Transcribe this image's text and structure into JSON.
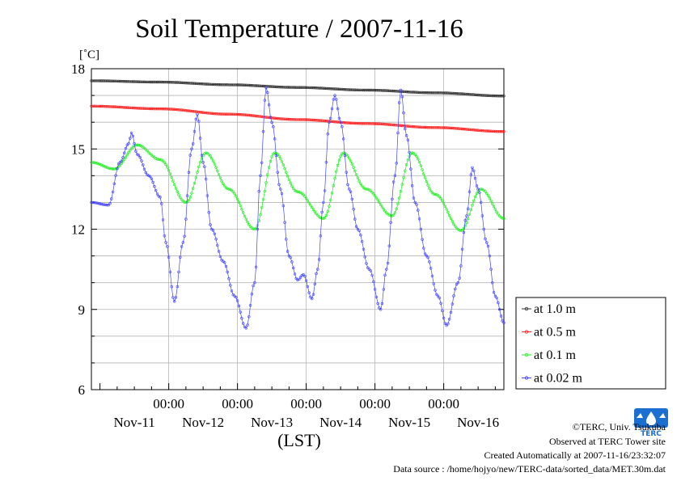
{
  "chart_data": {
    "type": "line",
    "title": "Soil Temperature / 2007-11-16",
    "ylabel": "[˚C]",
    "xlabel": "(LST)",
    "ylim": [
      6,
      18
    ],
    "yticks": [
      6,
      9,
      12,
      15,
      18
    ],
    "xlim_hours": [
      0,
      144
    ],
    "time_start": "2007-11-10 21:00",
    "xticks": [
      {
        "hour": 27,
        "time": "00:00",
        "date": "Nov-12"
      },
      {
        "hour": 51,
        "time": "00:00",
        "date": "Nov-13"
      },
      {
        "hour": 75,
        "time": "00:00",
        "date": "Nov-14"
      },
      {
        "hour": 99,
        "time": "00:00",
        "date": "Nov-15"
      },
      {
        "hour": 123,
        "time": "00:00",
        "date": "Nov-16"
      }
    ],
    "date_labels": [
      "Nov-11",
      "Nov-12",
      "Nov-13",
      "Nov-14",
      "Nov-15",
      "Nov-16"
    ],
    "grid": true,
    "legend_position": "right",
    "series": [
      {
        "name": "at 1.0 m",
        "color": "#333333",
        "points": [
          [
            0,
            17.55
          ],
          [
            24,
            17.5
          ],
          [
            48,
            17.4
          ],
          [
            72,
            17.3
          ],
          [
            96,
            17.2
          ],
          [
            120,
            17.1
          ],
          [
            144,
            16.98
          ]
        ]
      },
      {
        "name": "at 0.5 m",
        "color": "#ff2222",
        "points": [
          [
            0,
            16.6
          ],
          [
            24,
            16.5
          ],
          [
            48,
            16.3
          ],
          [
            72,
            16.1
          ],
          [
            96,
            15.95
          ],
          [
            120,
            15.8
          ],
          [
            144,
            15.65
          ]
        ]
      },
      {
        "name": "at 0.1 m",
        "color": "#22ee22",
        "points": [
          [
            0,
            14.5
          ],
          [
            8,
            14.25
          ],
          [
            16,
            15.15
          ],
          [
            24,
            14.6
          ],
          [
            33,
            13.0
          ],
          [
            40,
            14.85
          ],
          [
            48,
            13.5
          ],
          [
            57,
            12.0
          ],
          [
            64,
            14.85
          ],
          [
            72,
            13.4
          ],
          [
            81,
            12.4
          ],
          [
            88,
            14.85
          ],
          [
            96,
            13.5
          ],
          [
            105,
            12.5
          ],
          [
            112,
            14.85
          ],
          [
            120,
            13.3
          ],
          [
            129,
            11.95
          ],
          [
            136,
            13.5
          ],
          [
            144,
            12.4
          ]
        ]
      },
      {
        "name": "at 0.02 m",
        "color": "#4444ff",
        "points": [
          [
            0,
            13.0
          ],
          [
            6,
            12.9
          ],
          [
            10,
            14.5
          ],
          [
            13,
            15.2
          ],
          [
            14,
            15.6
          ],
          [
            16,
            14.8
          ],
          [
            20,
            14.0
          ],
          [
            24,
            13.2
          ],
          [
            26,
            11.5
          ],
          [
            29,
            9.3
          ],
          [
            32,
            11.5
          ],
          [
            35,
            15.0
          ],
          [
            37,
            16.3
          ],
          [
            39,
            14.5
          ],
          [
            42,
            12.0
          ],
          [
            46,
            10.8
          ],
          [
            50,
            9.5
          ],
          [
            54,
            8.3
          ],
          [
            57,
            10.0
          ],
          [
            59,
            14.0
          ],
          [
            61,
            17.3
          ],
          [
            63,
            16.0
          ],
          [
            66,
            13.5
          ],
          [
            69,
            11.0
          ],
          [
            72,
            10.1
          ],
          [
            74,
            10.3
          ],
          [
            77,
            9.4
          ],
          [
            79,
            10.5
          ],
          [
            81,
            13.0
          ],
          [
            83,
            16.0
          ],
          [
            85,
            17.0
          ],
          [
            87,
            16.0
          ],
          [
            90,
            13.5
          ],
          [
            93,
            12.0
          ],
          [
            97,
            10.5
          ],
          [
            101,
            9.0
          ],
          [
            103,
            10.5
          ],
          [
            106,
            14.0
          ],
          [
            108,
            17.2
          ],
          [
            110,
            15.5
          ],
          [
            113,
            13.0
          ],
          [
            117,
            11.0
          ],
          [
            121,
            9.5
          ],
          [
            124,
            8.4
          ],
          [
            128,
            10.0
          ],
          [
            131,
            12.5
          ],
          [
            133,
            14.3
          ],
          [
            135,
            13.5
          ],
          [
            138,
            11.5
          ],
          [
            141,
            9.5
          ],
          [
            144,
            8.5
          ]
        ]
      }
    ]
  },
  "footer": {
    "copyright": "©TERC, Univ. Tsukuba",
    "site": "Observed at TERC Tower site",
    "created": "Created Automatically at 2007-11-16/23:32:07",
    "source": "Data source : /home/hojyo/new/TERC-data/sorted_data/MET.30m.dat"
  },
  "logo": {
    "text": "TERC",
    "color": "#1a6fd0"
  }
}
